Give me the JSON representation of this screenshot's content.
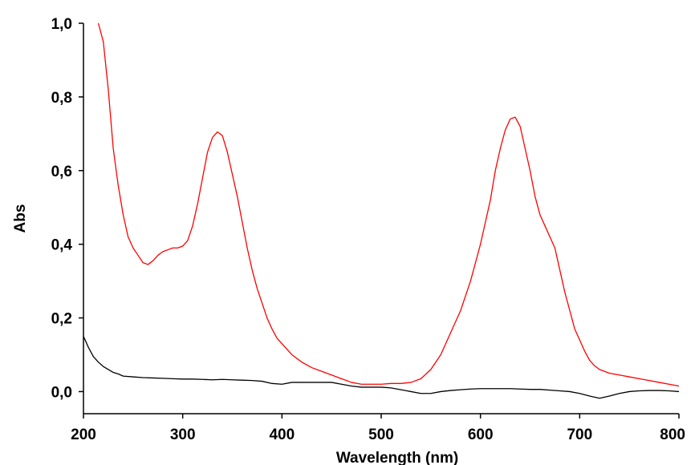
{
  "chart_data": {
    "type": "line",
    "xlabel": "Wavelength (nm)",
    "ylabel": "Abs",
    "xlim": [
      200,
      800
    ],
    "ylim": [
      -0.06,
      1.0
    ],
    "x_ticks": [
      200,
      300,
      400,
      500,
      600,
      700,
      800
    ],
    "x_tick_labels": [
      "200",
      "300",
      "400",
      "500",
      "600",
      "700",
      "800"
    ],
    "y_ticks": [
      0.0,
      0.2,
      0.4,
      0.6,
      0.8,
      1.0
    ],
    "y_tick_labels": [
      "0,0",
      "0,2",
      "0,4",
      "0,6",
      "0,8",
      "1,0"
    ],
    "grid": false,
    "series": [
      {
        "color": "#ff0000",
        "points": [
          [
            215,
            1.0
          ],
          [
            220,
            0.95
          ],
          [
            225,
            0.82
          ],
          [
            230,
            0.66
          ],
          [
            235,
            0.56
          ],
          [
            240,
            0.48
          ],
          [
            245,
            0.42
          ],
          [
            250,
            0.39
          ],
          [
            255,
            0.37
          ],
          [
            260,
            0.35
          ],
          [
            265,
            0.345
          ],
          [
            270,
            0.355
          ],
          [
            275,
            0.37
          ],
          [
            280,
            0.38
          ],
          [
            285,
            0.385
          ],
          [
            290,
            0.39
          ],
          [
            295,
            0.39
          ],
          [
            300,
            0.395
          ],
          [
            305,
            0.41
          ],
          [
            310,
            0.45
          ],
          [
            315,
            0.51
          ],
          [
            320,
            0.58
          ],
          [
            325,
            0.65
          ],
          [
            330,
            0.69
          ],
          [
            335,
            0.705
          ],
          [
            340,
            0.695
          ],
          [
            345,
            0.65
          ],
          [
            350,
            0.59
          ],
          [
            355,
            0.53
          ],
          [
            360,
            0.46
          ],
          [
            365,
            0.39
          ],
          [
            370,
            0.33
          ],
          [
            375,
            0.28
          ],
          [
            380,
            0.24
          ],
          [
            385,
            0.2
          ],
          [
            390,
            0.17
          ],
          [
            395,
            0.145
          ],
          [
            400,
            0.13
          ],
          [
            410,
            0.1
          ],
          [
            420,
            0.08
          ],
          [
            430,
            0.065
          ],
          [
            440,
            0.055
          ],
          [
            450,
            0.045
          ],
          [
            460,
            0.035
          ],
          [
            470,
            0.025
          ],
          [
            480,
            0.02
          ],
          [
            490,
            0.02
          ],
          [
            500,
            0.02
          ],
          [
            510,
            0.022
          ],
          [
            520,
            0.022
          ],
          [
            530,
            0.025
          ],
          [
            540,
            0.035
          ],
          [
            550,
            0.06
          ],
          [
            560,
            0.1
          ],
          [
            570,
            0.16
          ],
          [
            580,
            0.22
          ],
          [
            590,
            0.3
          ],
          [
            600,
            0.4
          ],
          [
            610,
            0.52
          ],
          [
            615,
            0.6
          ],
          [
            620,
            0.66
          ],
          [
            625,
            0.71
          ],
          [
            630,
            0.74
          ],
          [
            635,
            0.745
          ],
          [
            640,
            0.72
          ],
          [
            645,
            0.66
          ],
          [
            650,
            0.6
          ],
          [
            655,
            0.53
          ],
          [
            660,
            0.48
          ],
          [
            665,
            0.45
          ],
          [
            670,
            0.42
          ],
          [
            675,
            0.39
          ],
          [
            680,
            0.33
          ],
          [
            685,
            0.27
          ],
          [
            690,
            0.22
          ],
          [
            695,
            0.17
          ],
          [
            700,
            0.14
          ],
          [
            705,
            0.11
          ],
          [
            710,
            0.085
          ],
          [
            715,
            0.07
          ],
          [
            720,
            0.06
          ],
          [
            730,
            0.05
          ],
          [
            740,
            0.045
          ],
          [
            750,
            0.04
          ],
          [
            760,
            0.035
          ],
          [
            770,
            0.03
          ],
          [
            780,
            0.025
          ],
          [
            790,
            0.02
          ],
          [
            800,
            0.015
          ]
        ]
      },
      {
        "color": "#000000",
        "points": [
          [
            200,
            0.15
          ],
          [
            205,
            0.12
          ],
          [
            210,
            0.095
          ],
          [
            215,
            0.08
          ],
          [
            220,
            0.068
          ],
          [
            225,
            0.06
          ],
          [
            230,
            0.052
          ],
          [
            235,
            0.048
          ],
          [
            240,
            0.042
          ],
          [
            250,
            0.04
          ],
          [
            260,
            0.038
          ],
          [
            270,
            0.037
          ],
          [
            280,
            0.036
          ],
          [
            290,
            0.035
          ],
          [
            300,
            0.034
          ],
          [
            310,
            0.034
          ],
          [
            320,
            0.033
          ],
          [
            330,
            0.032
          ],
          [
            340,
            0.033
          ],
          [
            350,
            0.032
          ],
          [
            360,
            0.031
          ],
          [
            370,
            0.03
          ],
          [
            380,
            0.028
          ],
          [
            390,
            0.022
          ],
          [
            400,
            0.02
          ],
          [
            410,
            0.025
          ],
          [
            420,
            0.025
          ],
          [
            430,
            0.025
          ],
          [
            440,
            0.025
          ],
          [
            450,
            0.025
          ],
          [
            460,
            0.02
          ],
          [
            470,
            0.015
          ],
          [
            480,
            0.012
          ],
          [
            490,
            0.012
          ],
          [
            500,
            0.012
          ],
          [
            510,
            0.01
          ],
          [
            520,
            0.005
          ],
          [
            530,
            0.0
          ],
          [
            540,
            -0.005
          ],
          [
            550,
            -0.005
          ],
          [
            560,
            0.0
          ],
          [
            570,
            0.003
          ],
          [
            580,
            0.005
          ],
          [
            590,
            0.007
          ],
          [
            600,
            0.008
          ],
          [
            610,
            0.008
          ],
          [
            620,
            0.008
          ],
          [
            630,
            0.008
          ],
          [
            640,
            0.007
          ],
          [
            650,
            0.006
          ],
          [
            660,
            0.006
          ],
          [
            670,
            0.004
          ],
          [
            680,
            0.002
          ],
          [
            690,
            0.0
          ],
          [
            700,
            -0.005
          ],
          [
            710,
            -0.012
          ],
          [
            720,
            -0.018
          ],
          [
            730,
            -0.012
          ],
          [
            740,
            -0.005
          ],
          [
            750,
            0.0
          ],
          [
            760,
            0.002
          ],
          [
            770,
            0.003
          ],
          [
            780,
            0.003
          ],
          [
            790,
            0.002
          ],
          [
            800,
            0.0
          ]
        ]
      }
    ]
  }
}
